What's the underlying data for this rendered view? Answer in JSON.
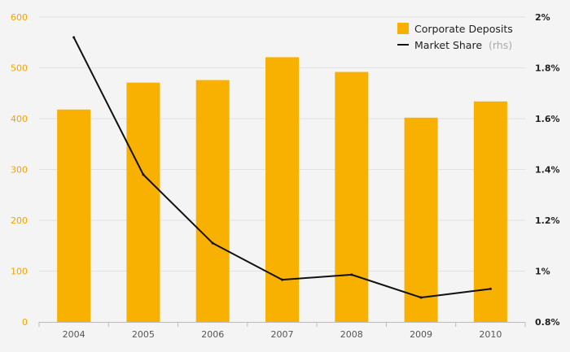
{
  "chart_data": {
    "type": "bar+line",
    "categories": [
      "2004",
      "2005",
      "2006",
      "2007",
      "2008",
      "2009",
      "2010"
    ],
    "series": [
      {
        "name": "Corporate Deposits",
        "type": "bar",
        "axis": "left",
        "color": "#f8b100",
        "values": [
          418,
          471,
          476,
          521,
          492,
          402,
          434
        ]
      },
      {
        "name": "Market Share",
        "name_note": "(rhs)",
        "type": "line",
        "axis": "right",
        "color": "#111111",
        "values": [
          1.92,
          1.38,
          1.11,
          0.966,
          0.986,
          0.896,
          0.93
        ]
      }
    ],
    "y_left": {
      "range": [
        0,
        600
      ],
      "ticks": [
        0,
        100,
        200,
        300,
        400,
        500,
        600
      ],
      "tick_labels": [
        "0",
        "100",
        "200",
        "300",
        "400",
        "500",
        "600"
      ],
      "color": "#f0a500"
    },
    "y_right": {
      "range": [
        0.8,
        2.0
      ],
      "ticks": [
        0.8,
        1.0,
        1.2,
        1.4,
        1.6,
        1.8,
        2.0
      ],
      "tick_labels": [
        "0.8%",
        "1%",
        "1.2%",
        "1.4%",
        "1.6%",
        "1.8%",
        "2%"
      ]
    },
    "grid": true,
    "legend_position": "top-right",
    "colors": {
      "background": "#f4f4f4",
      "grid": "#e1e1e1",
      "axis": "#bbbbbb"
    }
  }
}
